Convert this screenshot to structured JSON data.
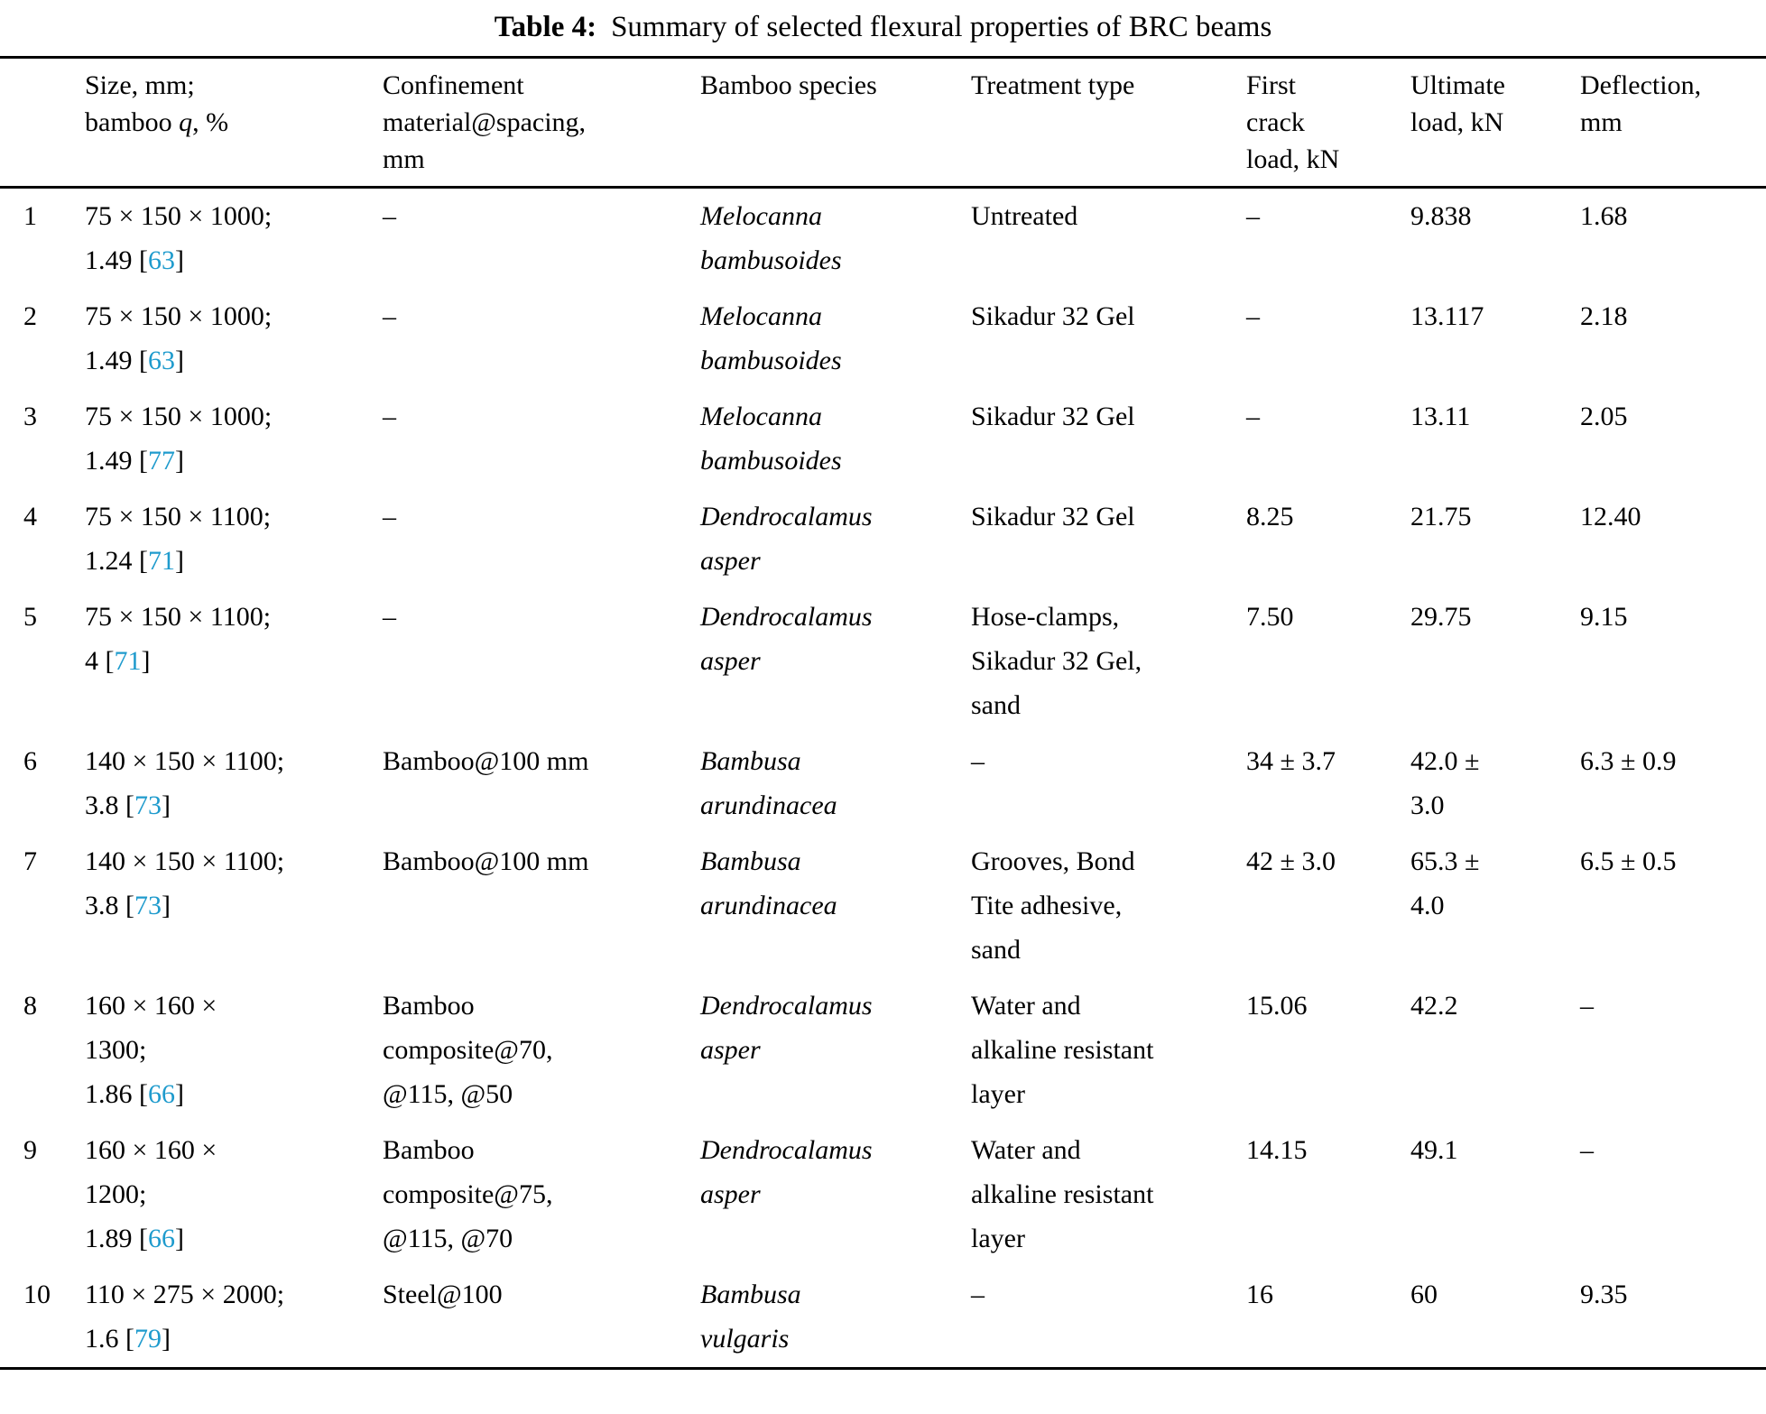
{
  "caption": {
    "label": "Table 4:",
    "text": "Summary of selected flexural properties of BRC beams"
  },
  "colors": {
    "citation": "#1f9bcd",
    "text": "#000000",
    "rules": "#000000"
  },
  "table": {
    "columns": [
      {
        "id": "num",
        "lines": []
      },
      {
        "id": "size",
        "lines": [
          "Size, mm;",
          [
            {
              "t": "bamboo "
            },
            {
              "t": "q",
              "italic": true
            },
            {
              "t": ", %"
            }
          ]
        ]
      },
      {
        "id": "confinement",
        "lines": [
          "Confinement",
          "material@spacing,",
          "mm"
        ]
      },
      {
        "id": "species",
        "lines": [
          "Bamboo species"
        ]
      },
      {
        "id": "treatment",
        "lines": [
          "Treatment type"
        ]
      },
      {
        "id": "first-crack-load",
        "lines": [
          "First",
          "crack",
          "load, kN"
        ]
      },
      {
        "id": "ultimate-load",
        "lines": [
          "Ultimate",
          "load, kN"
        ]
      },
      {
        "id": "deflection",
        "lines": [
          "Deflection,",
          "mm"
        ]
      }
    ],
    "rows": [
      {
        "cells": [
          {
            "lines": [
              "1"
            ]
          },
          {
            "lines": [
              "75 × 150 × 1000;",
              "1.49 [63]"
            ]
          },
          {
            "lines": [
              "–"
            ]
          },
          {
            "lines": [
              "Melocanna",
              "bambusoides"
            ],
            "italic": true
          },
          {
            "lines": [
              "Untreated"
            ]
          },
          {
            "lines": [
              "–"
            ]
          },
          {
            "lines": [
              "9.838"
            ]
          },
          {
            "lines": [
              "1.68"
            ]
          }
        ]
      },
      {
        "cells": [
          {
            "lines": [
              "2"
            ]
          },
          {
            "lines": [
              "75 × 150 × 1000;",
              "1.49 [63]"
            ]
          },
          {
            "lines": [
              "–"
            ]
          },
          {
            "lines": [
              "Melocanna",
              "bambusoides"
            ],
            "italic": true
          },
          {
            "lines": [
              "Sikadur 32 Gel"
            ]
          },
          {
            "lines": [
              "–"
            ]
          },
          {
            "lines": [
              "13.117"
            ]
          },
          {
            "lines": [
              "2.18"
            ]
          }
        ]
      },
      {
        "cells": [
          {
            "lines": [
              "3"
            ]
          },
          {
            "lines": [
              "75 × 150 × 1000;",
              "1.49 [77]"
            ]
          },
          {
            "lines": [
              "–"
            ]
          },
          {
            "lines": [
              "Melocanna",
              "bambusoides"
            ],
            "italic": true
          },
          {
            "lines": [
              "Sikadur 32 Gel"
            ]
          },
          {
            "lines": [
              "–"
            ]
          },
          {
            "lines": [
              "13.11"
            ]
          },
          {
            "lines": [
              "2.05"
            ]
          }
        ]
      },
      {
        "cells": [
          {
            "lines": [
              "4"
            ]
          },
          {
            "lines": [
              "75 × 150 × 1100;",
              "1.24 [71]"
            ]
          },
          {
            "lines": [
              "–"
            ]
          },
          {
            "lines": [
              "Dendrocalamus",
              "asper"
            ],
            "italic": true
          },
          {
            "lines": [
              "Sikadur 32 Gel"
            ]
          },
          {
            "lines": [
              "8.25"
            ]
          },
          {
            "lines": [
              "21.75"
            ]
          },
          {
            "lines": [
              "12.40"
            ]
          }
        ]
      },
      {
        "cells": [
          {
            "lines": [
              "5"
            ]
          },
          {
            "lines": [
              "75 × 150 × 1100;",
              "4 [71]"
            ]
          },
          {
            "lines": [
              "–"
            ]
          },
          {
            "lines": [
              "Dendrocalamus",
              "asper"
            ],
            "italic": true
          },
          {
            "lines": [
              "Hose-clamps,",
              "Sikadur 32 Gel,",
              "sand"
            ]
          },
          {
            "lines": [
              "7.50"
            ]
          },
          {
            "lines": [
              "29.75"
            ]
          },
          {
            "lines": [
              "9.15"
            ]
          }
        ]
      },
      {
        "cells": [
          {
            "lines": [
              "6"
            ]
          },
          {
            "lines": [
              "140 × 150 × 1100;",
              "3.8 [73]"
            ]
          },
          {
            "lines": [
              "Bamboo@100 mm"
            ]
          },
          {
            "lines": [
              "Bambusa",
              "arundinacea"
            ],
            "italic": true
          },
          {
            "lines": [
              "–"
            ]
          },
          {
            "lines": [
              "34 ± 3.7"
            ]
          },
          {
            "lines": [
              "42.0 ±",
              "3.0"
            ]
          },
          {
            "lines": [
              "6.3 ± 0.9"
            ]
          }
        ]
      },
      {
        "cells": [
          {
            "lines": [
              "7"
            ]
          },
          {
            "lines": [
              "140 × 150 × 1100;",
              "3.8 [73]"
            ]
          },
          {
            "lines": [
              "Bamboo@100 mm"
            ]
          },
          {
            "lines": [
              "Bambusa",
              "arundinacea"
            ],
            "italic": true
          },
          {
            "lines": [
              "Grooves, Bond",
              "Tite adhesive,",
              "sand"
            ]
          },
          {
            "lines": [
              "42 ± 3.0"
            ]
          },
          {
            "lines": [
              "65.3 ±",
              "4.0"
            ]
          },
          {
            "lines": [
              "6.5 ± 0.5"
            ]
          }
        ]
      },
      {
        "cells": [
          {
            "lines": [
              "8"
            ]
          },
          {
            "lines": [
              "160 × 160 ×",
              "1300;",
              "1.86 [66]"
            ]
          },
          {
            "lines": [
              "Bamboo",
              "composite@70,",
              "@115, @50"
            ]
          },
          {
            "lines": [
              "Dendrocalamus",
              "asper"
            ],
            "italic": true
          },
          {
            "lines": [
              "Water and",
              "alkaline resistant",
              "layer"
            ]
          },
          {
            "lines": [
              "15.06"
            ]
          },
          {
            "lines": [
              "42.2"
            ]
          },
          {
            "lines": [
              "–"
            ]
          }
        ]
      },
      {
        "cells": [
          {
            "lines": [
              "9"
            ]
          },
          {
            "lines": [
              "160 × 160 ×",
              "1200;",
              "1.89 [66]"
            ]
          },
          {
            "lines": [
              "Bamboo",
              "composite@75,",
              "@115, @70"
            ]
          },
          {
            "lines": [
              "Dendrocalamus",
              "asper"
            ],
            "italic": true
          },
          {
            "lines": [
              "Water and",
              "alkaline resistant",
              "layer"
            ]
          },
          {
            "lines": [
              "14.15"
            ]
          },
          {
            "lines": [
              "49.1"
            ]
          },
          {
            "lines": [
              "–"
            ]
          }
        ]
      },
      {
        "cells": [
          {
            "lines": [
              "10"
            ]
          },
          {
            "lines": [
              "110 × 275 × 2000;",
              "1.6 [79]"
            ]
          },
          {
            "lines": [
              "Steel@100"
            ]
          },
          {
            "lines": [
              "Bambusa",
              "vulgaris"
            ],
            "italic": true
          },
          {
            "lines": [
              "–"
            ]
          },
          {
            "lines": [
              "16"
            ]
          },
          {
            "lines": [
              "60"
            ]
          },
          {
            "lines": [
              "9.35"
            ]
          }
        ]
      }
    ]
  }
}
